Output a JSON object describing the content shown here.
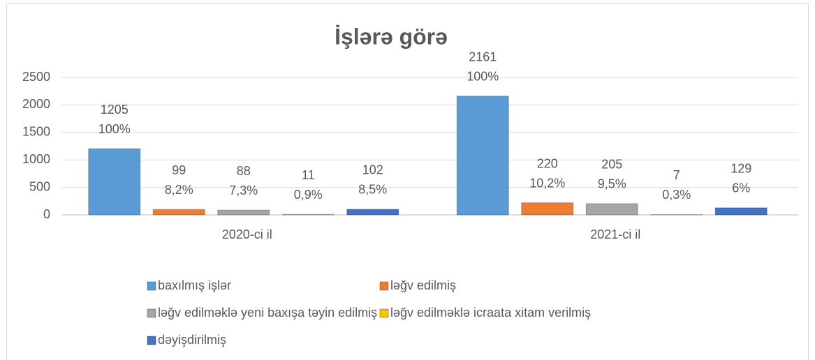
{
  "chart_data": {
    "type": "bar",
    "title": "İşlərə görə",
    "categories": [
      "2020-ci il",
      "2021-ci il"
    ],
    "series": [
      {
        "name": "baxılmış işlər",
        "color": "#5b9bd5",
        "values": [
          1205,
          2161
        ],
        "share_labels": [
          "100%",
          "100%"
        ]
      },
      {
        "name": "ləğv edilmiş",
        "color": "#ed7d31",
        "values": [
          99,
          220
        ],
        "share_labels": [
          "8,2%",
          "10,2%"
        ]
      },
      {
        "name": "ləğv edilməklə yeni baxışa təyin edilmiş",
        "color": "#a5a5a5",
        "values": [
          88,
          205
        ],
        "share_labels": [
          "7,3%",
          "9,5%"
        ]
      },
      {
        "name": "ləğv edilməklə icraata xitam verilmiş",
        "color": "#ffc000",
        "values": [
          11,
          7
        ],
        "share_labels": [
          "0,9%",
          "0,3%"
        ]
      },
      {
        "name": "dəyişdirilmiş",
        "color": "#4472c4",
        "values": [
          102,
          129
        ],
        "share_labels": [
          "8,5%",
          "6%"
        ]
      }
    ],
    "ylim": [
      0,
      2500
    ],
    "yticks": [
      0,
      500,
      1000,
      1500,
      2000,
      2500
    ],
    "grid": true,
    "legend": "bottom"
  }
}
